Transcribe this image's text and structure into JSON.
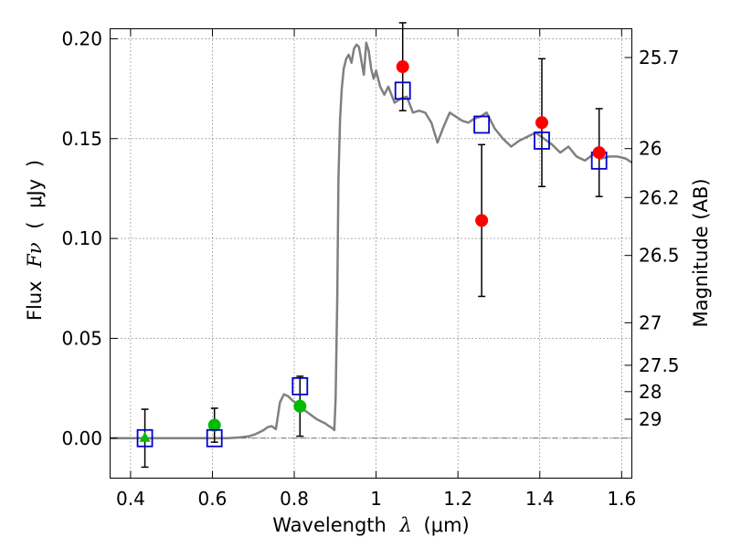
{
  "chart_data": {
    "type": "scatter",
    "title": "",
    "xlabel": {
      "prefix": "Wavelength",
      "symbol": "λ",
      "open": "(",
      "unit": "μm",
      "close": ")"
    },
    "ylabel": {
      "prefix": "Flux",
      "symbol": "Fν",
      "open": "(",
      "unit": "μJy",
      "close": ")"
    },
    "y2label": "Magnitude (AB)",
    "xlim": [
      0.35,
      1.625
    ],
    "ylim": [
      -0.02,
      0.205
    ],
    "grid": true,
    "x_ticks": [
      0.4,
      0.6,
      0.8,
      1.0,
      1.2,
      1.4,
      1.6
    ],
    "x_tick_labels": [
      "0.4",
      "0.6",
      "0.8",
      "1",
      "1.2",
      "1.4",
      "1.6"
    ],
    "y_ticks": [
      0.0,
      0.05,
      0.1,
      0.15,
      0.2
    ],
    "y_tick_labels": [
      "0.00",
      "0.05",
      "0.10",
      "0.15",
      "0.20"
    ],
    "mag_ticks": [
      {
        "label": "25.7",
        "flux": 0.1906
      },
      {
        "label": "26",
        "flux": 0.145
      },
      {
        "label": "26.2",
        "flux": 0.1205
      },
      {
        "label": "26.5",
        "flux": 0.0915
      },
      {
        "label": "27",
        "flux": 0.0578
      },
      {
        "label": "27.5",
        "flux": 0.0365
      },
      {
        "label": "28",
        "flux": 0.0233
      },
      {
        "label": "29",
        "flux": 0.0095
      }
    ],
    "zero_line": 0.0,
    "model_sed": {
      "name": "model spectrum",
      "color": "#808080",
      "x": [
        0.35,
        0.4,
        0.45,
        0.5,
        0.55,
        0.6,
        0.64,
        0.67,
        0.69,
        0.705,
        0.715,
        0.725,
        0.735,
        0.745,
        0.755,
        0.765,
        0.775,
        0.785,
        0.795,
        0.805,
        0.815,
        0.825,
        0.835,
        0.845,
        0.855,
        0.865,
        0.875,
        0.885,
        0.893,
        0.898,
        0.901,
        0.905,
        0.908,
        0.912,
        0.916,
        0.921,
        0.927,
        0.933,
        0.94,
        0.946,
        0.952,
        0.958,
        0.964,
        0.97,
        0.976,
        0.982,
        0.988,
        0.994,
        1.0,
        1.01,
        1.02,
        1.03,
        1.045,
        1.06,
        1.075,
        1.09,
        1.105,
        1.12,
        1.135,
        1.15,
        1.165,
        1.18,
        1.195,
        1.21,
        1.225,
        1.24,
        1.255,
        1.27,
        1.29,
        1.31,
        1.33,
        1.35,
        1.37,
        1.39,
        1.41,
        1.43,
        1.45,
        1.47,
        1.49,
        1.51,
        1.53,
        1.55,
        1.57,
        1.59,
        1.61,
        1.625
      ],
      "y": [
        0.0,
        0.0,
        0.0,
        0.0,
        0.0,
        0.0,
        0.0,
        0.0005,
        0.001,
        0.002,
        0.003,
        0.004,
        0.0055,
        0.006,
        0.0045,
        0.018,
        0.022,
        0.021,
        0.019,
        0.0175,
        0.016,
        0.014,
        0.0125,
        0.011,
        0.0095,
        0.0085,
        0.0075,
        0.006,
        0.005,
        0.004,
        0.02,
        0.07,
        0.13,
        0.16,
        0.175,
        0.185,
        0.19,
        0.192,
        0.188,
        0.195,
        0.197,
        0.196,
        0.189,
        0.182,
        0.198,
        0.194,
        0.185,
        0.18,
        0.184,
        0.176,
        0.172,
        0.176,
        0.168,
        0.17,
        0.171,
        0.163,
        0.164,
        0.163,
        0.158,
        0.148,
        0.156,
        0.163,
        0.161,
        0.159,
        0.158,
        0.16,
        0.161,
        0.163,
        0.155,
        0.15,
        0.146,
        0.149,
        0.151,
        0.153,
        0.15,
        0.147,
        0.143,
        0.146,
        0.141,
        0.139,
        0.142,
        0.14,
        0.141,
        0.141,
        0.14,
        0.138
      ]
    },
    "model_band_fluxes": {
      "name": "model band flux",
      "color": "#0000cc",
      "x": [
        0.435,
        0.605,
        0.814,
        1.065,
        1.258,
        1.405,
        1.545
      ],
      "y": [
        0.0,
        0.0,
        0.026,
        0.174,
        0.157,
        0.149,
        0.139
      ]
    },
    "observed_detections": {
      "name": "observed (red)",
      "color": "#ff0000",
      "x": [
        1.065,
        1.258,
        1.405,
        1.545
      ],
      "y": [
        0.186,
        0.109,
        0.158,
        0.143
      ],
      "yerr": [
        0.022,
        0.038,
        0.032,
        0.022
      ]
    },
    "observed_weak": {
      "name": "observed (green)",
      "color": "#00bb00",
      "x": [
        0.605,
        0.814
      ],
      "y": [
        0.0065,
        0.016
      ],
      "yerr": [
        0.0085,
        0.015
      ]
    },
    "upper_limits": {
      "name": "upper limit (green triangle)",
      "color": "#00bb00",
      "x": [
        0.435
      ],
      "y": [
        0.0
      ],
      "yerr": [
        0.0145
      ]
    }
  }
}
